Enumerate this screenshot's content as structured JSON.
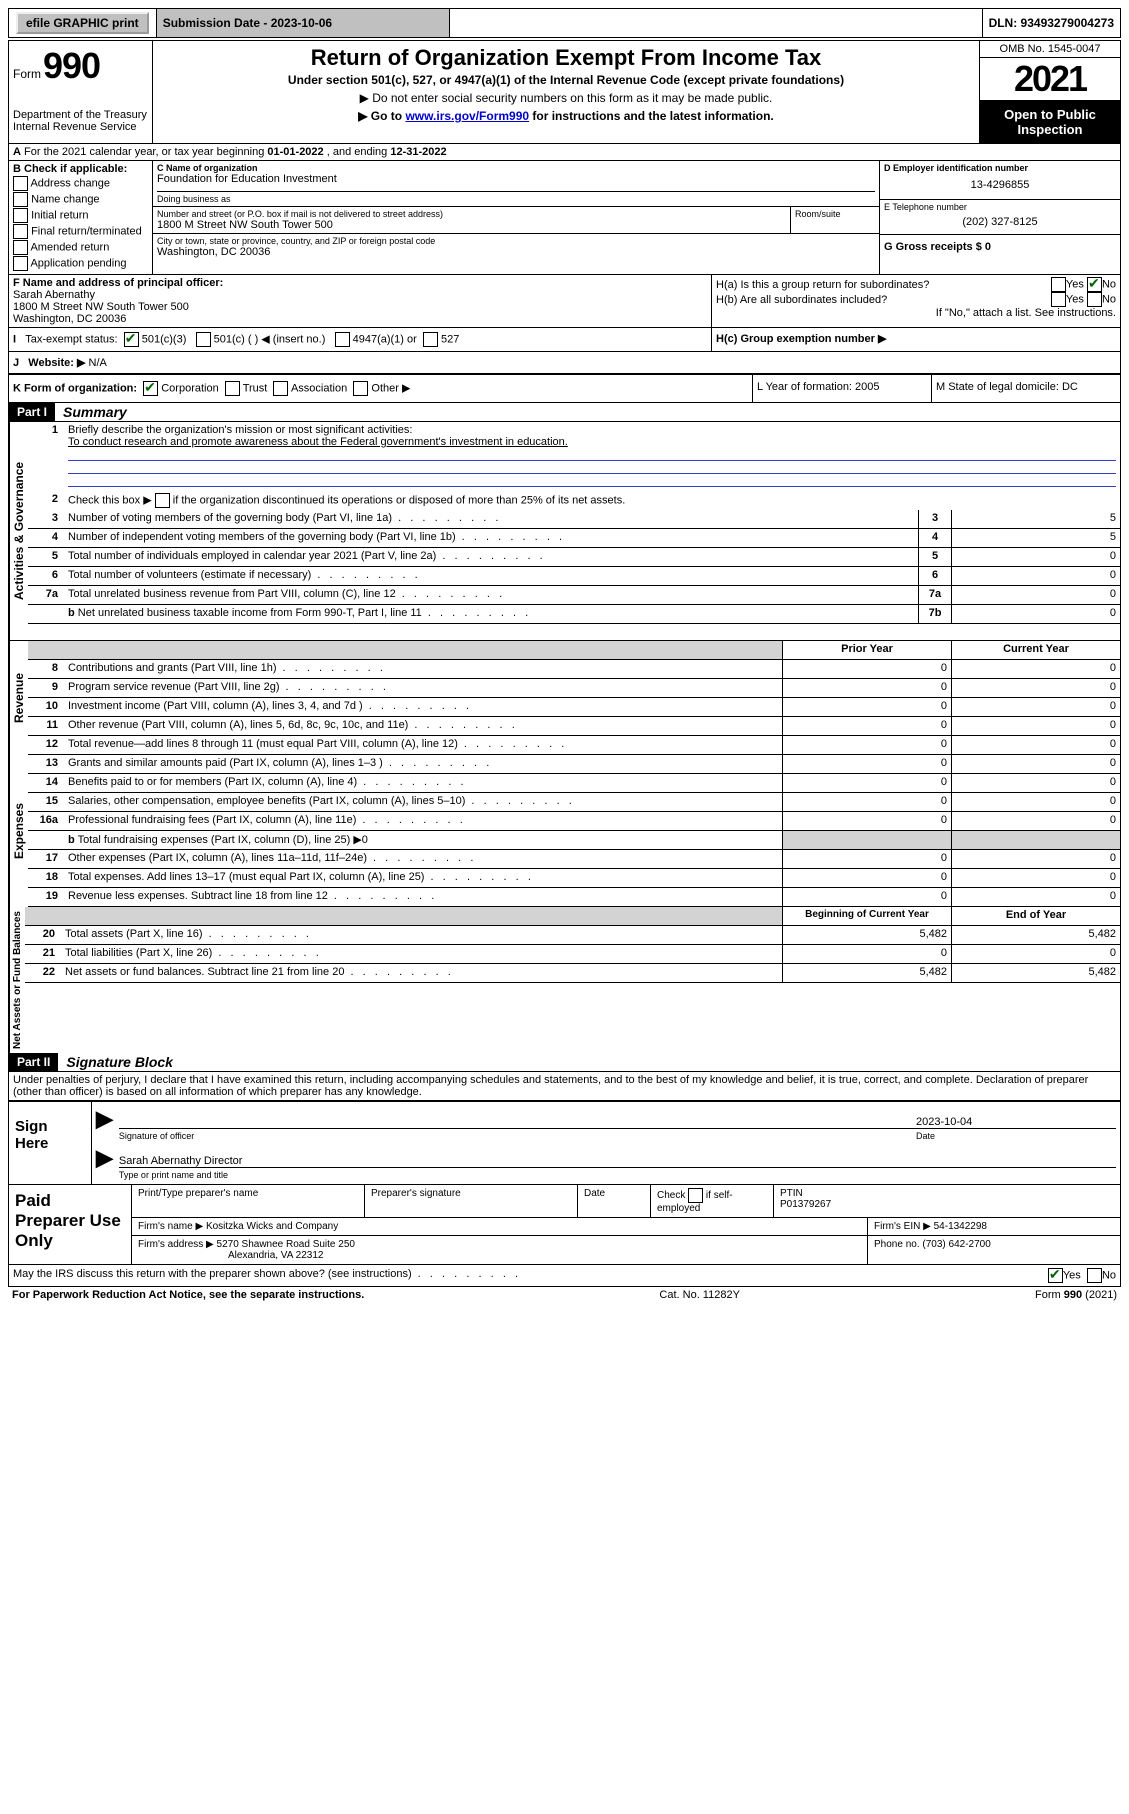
{
  "topbar": {
    "efile": "efile GRAPHIC print",
    "submission_label": "Submission Date - 2023-10-06",
    "dln_label": "DLN: 93493279004273"
  },
  "header": {
    "form_small": "Form",
    "form_big": "990",
    "dept1": "Department of the Treasury",
    "dept2": "Internal Revenue Service",
    "title": "Return of Organization Exempt From Income Tax",
    "subtitle": "Under section 501(c), 527, or 4947(a)(1) of the Internal Revenue Code (except private foundations)",
    "note1": "▶ Do not enter social security numbers on this form as it may be made public.",
    "note2_pre": "▶ Go to ",
    "note2_link": "www.irs.gov/Form990",
    "note2_post": " for instructions and the latest information.",
    "omb": "OMB No. 1545-0047",
    "year": "2021",
    "open_pub1": "Open to Public",
    "open_pub2": "Inspection"
  },
  "lineA": {
    "prefix": "A",
    "text": "For the 2021 calendar year, or tax year beginning ",
    "begin": "01-01-2022",
    "mid": " , and ending ",
    "end": "12-31-2022"
  },
  "sectionB": {
    "header": "B Check if applicable:",
    "opts": [
      "Address change",
      "Name change",
      "Initial return",
      "Final return/terminated",
      "Amended return",
      "Application pending"
    ]
  },
  "sectionC": {
    "label": "C Name of organization",
    "name": "Foundation for Education Investment",
    "dba_label": "Doing business as",
    "addr_label": "Number and street (or P.O. box if mail is not delivered to street address)",
    "room_label": "Room/suite",
    "addr": "1800 M Street NW South Tower 500",
    "city_label": "City or town, state or province, country, and ZIP or foreign postal code",
    "city": "Washington, DC  20036"
  },
  "sectionD": {
    "label": "D Employer identification number",
    "value": "13-4296855"
  },
  "sectionE": {
    "label": "E Telephone number",
    "value": "(202) 327-8125"
  },
  "sectionG": {
    "label": "G Gross receipts $ 0"
  },
  "sectionF": {
    "label": "F  Name and address of principal officer:",
    "name": "Sarah Abernathy",
    "addr1": "1800 M Street NW South Tower 500",
    "addr2": "Washington, DC  20036"
  },
  "sectionH": {
    "a_label": "H(a)  Is this a group return for subordinates?",
    "yes": "Yes",
    "no": "No",
    "b_label": "H(b)  Are all subordinates included?",
    "b_note": "If \"No,\" attach a list. See instructions.",
    "c_label": "H(c)  Group exemption number ▶"
  },
  "sectionI": {
    "label": "Tax-exempt status:",
    "opt1": "501(c)(3)",
    "opt2": "501(c) (  ) ◀ (insert no.)",
    "opt3": "4947(a)(1) or",
    "opt4": "527"
  },
  "sectionJ": {
    "label": "Website: ▶",
    "value": "N/A"
  },
  "sectionK": {
    "label": "K Form of organization:",
    "opts": [
      "Corporation",
      "Trust",
      "Association",
      "Other ▶"
    ]
  },
  "sectionL": {
    "label": "L Year of formation: 2005"
  },
  "sectionM": {
    "label": "M State of legal domicile: DC"
  },
  "partI": {
    "header": "Part I",
    "title": "Summary",
    "line1_label": "Briefly describe the organization's mission or most significant activities:",
    "line1_value": "To conduct research and promote awareness about the Federal government's investment in education.",
    "line2": "Check this box ▶        if the organization discontinued its operations or disposed of more than 25% of its net assets.",
    "rows_gov": [
      {
        "n": "3",
        "d": "Number of voting members of the governing body (Part VI, line 1a)",
        "c": "3",
        "v": "5"
      },
      {
        "n": "4",
        "d": "Number of independent voting members of the governing body (Part VI, line 1b)",
        "c": "4",
        "v": "5"
      },
      {
        "n": "5",
        "d": "Total number of individuals employed in calendar year 2021 (Part V, line 2a)",
        "c": "5",
        "v": "0"
      },
      {
        "n": "6",
        "d": "Total number of volunteers (estimate if necessary)",
        "c": "6",
        "v": "0"
      },
      {
        "n": "7a",
        "d": "Total unrelated business revenue from Part VIII, column (C), line 12",
        "c": "7a",
        "v": "0"
      },
      {
        "n": "b",
        "d": "Net unrelated business taxable income from Form 990-T, Part I, line 11",
        "c": "7b",
        "v": "0",
        "sub": true
      }
    ],
    "col_prior": "Prior Year",
    "col_current": "Current Year",
    "rows_rev": [
      {
        "n": "8",
        "d": "Contributions and grants (Part VIII, line 1h)",
        "p": "0",
        "c": "0"
      },
      {
        "n": "9",
        "d": "Program service revenue (Part VIII, line 2g)",
        "p": "0",
        "c": "0"
      },
      {
        "n": "10",
        "d": "Investment income (Part VIII, column (A), lines 3, 4, and 7d )",
        "p": "0",
        "c": "0"
      },
      {
        "n": "11",
        "d": "Other revenue (Part VIII, column (A), lines 5, 6d, 8c, 9c, 10c, and 11e)",
        "p": "0",
        "c": "0"
      },
      {
        "n": "12",
        "d": "Total revenue—add lines 8 through 11 (must equal Part VIII, column (A), line 12)",
        "p": "0",
        "c": "0"
      }
    ],
    "rows_exp": [
      {
        "n": "13",
        "d": "Grants and similar amounts paid (Part IX, column (A), lines 1–3 )",
        "p": "0",
        "c": "0"
      },
      {
        "n": "14",
        "d": "Benefits paid to or for members (Part IX, column (A), line 4)",
        "p": "0",
        "c": "0"
      },
      {
        "n": "15",
        "d": "Salaries, other compensation, employee benefits (Part IX, column (A), lines 5–10)",
        "p": "0",
        "c": "0"
      },
      {
        "n": "16a",
        "d": "Professional fundraising fees (Part IX, column (A), line 11e)",
        "p": "0",
        "c": "0"
      },
      {
        "n": "b",
        "d": "Total fundraising expenses (Part IX, column (D), line 25) ▶0",
        "shade": true,
        "sub": true
      },
      {
        "n": "17",
        "d": "Other expenses (Part IX, column (A), lines 11a–11d, 11f–24e)",
        "p": "0",
        "c": "0"
      },
      {
        "n": "18",
        "d": "Total expenses. Add lines 13–17 (must equal Part IX, column (A), line 25)",
        "p": "0",
        "c": "0"
      },
      {
        "n": "19",
        "d": "Revenue less expenses. Subtract line 18 from line 12",
        "p": "0",
        "c": "0"
      }
    ],
    "col_begin": "Beginning of Current Year",
    "col_end": "End of Year",
    "rows_net": [
      {
        "n": "20",
        "d": "Total assets (Part X, line 16)",
        "p": "5,482",
        "c": "5,482"
      },
      {
        "n": "21",
        "d": "Total liabilities (Part X, line 26)",
        "p": "0",
        "c": "0"
      },
      {
        "n": "22",
        "d": "Net assets or fund balances. Subtract line 21 from line 20",
        "p": "5,482",
        "c": "5,482"
      }
    ],
    "rot_gov": "Activities & Governance",
    "rot_rev": "Revenue",
    "rot_exp": "Expenses",
    "rot_net": "Net Assets or Fund Balances"
  },
  "partII": {
    "header": "Part II",
    "title": "Signature Block",
    "decl": "Under penalties of perjury, I declare that I have examined this return, including accompanying schedules and statements, and to the best of my knowledge and belief, it is true, correct, and complete. Declaration of preparer (other than officer) is based on all information of which preparer has any knowledge."
  },
  "sign": {
    "left": "Sign Here",
    "sig_label": "Signature of officer",
    "date_label": "Date",
    "date_val": "2023-10-04",
    "name": "Sarah Abernathy Director",
    "name_label": "Type or print name and title"
  },
  "paid": {
    "left": "Paid Preparer Use Only",
    "h1": "Print/Type preparer's name",
    "h2": "Preparer's signature",
    "h3": "Date",
    "h4_pre": "Check",
    "h4_post": "if self-employed",
    "h5": "PTIN",
    "ptin": "P01379267",
    "firm_name_label": "Firm's name    ▶",
    "firm_name": "Kositzka Wicks and Company",
    "firm_ein_label": "Firm's EIN ▶",
    "firm_ein": "54-1342298",
    "firm_addr_label": "Firm's address ▶",
    "firm_addr1": "5270 Shawnee Road Suite 250",
    "firm_addr2": "Alexandria, VA  22312",
    "phone_label": "Phone no.",
    "phone": "(703) 642-2700"
  },
  "bottom": {
    "discuss": "May the IRS discuss this return with the preparer shown above? (see instructions)",
    "yes": "Yes",
    "no": "No",
    "paperwork": "For Paperwork Reduction Act Notice, see the separate instructions.",
    "cat": "Cat. No. 11282Y",
    "formrev": "Form 990 (2021)"
  }
}
